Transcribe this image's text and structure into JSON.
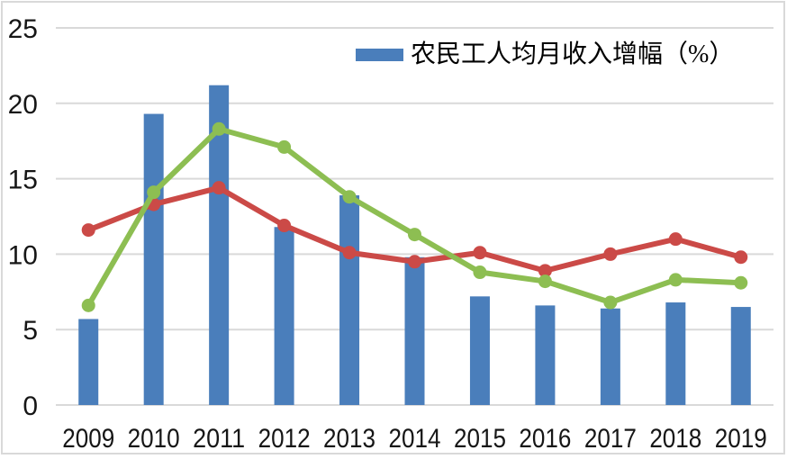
{
  "chart_data": {
    "type": "combo-bar-line",
    "title": "",
    "xlabel": "",
    "ylabel": "",
    "categories": [
      "2009",
      "2010",
      "2011",
      "2012",
      "2013",
      "2014",
      "2015",
      "2016",
      "2017",
      "2018",
      "2019"
    ],
    "series": [
      {
        "id": "migrant-worker-monthly-income-growth",
        "kind": "bar",
        "legend_label": "农民工人均月收入增幅（%）",
        "color": "#4A7EBB",
        "values": [
          5.7,
          19.3,
          21.2,
          11.8,
          13.9,
          9.8,
          7.2,
          6.6,
          6.4,
          6.8,
          6.5
        ]
      },
      {
        "id": "red-line",
        "kind": "line",
        "legend_label": null,
        "color": "#CB4A47",
        "values": [
          11.6,
          13.3,
          14.4,
          11.9,
          10.1,
          9.5,
          10.1,
          8.9,
          10.0,
          11.0,
          9.8
        ]
      },
      {
        "id": "green-line",
        "kind": "line",
        "legend_label": null,
        "color": "#8DBE52",
        "values": [
          6.6,
          14.1,
          18.3,
          17.1,
          13.8,
          11.3,
          8.8,
          8.2,
          6.8,
          8.3,
          8.1
        ]
      }
    ],
    "ylim": [
      0,
      25
    ],
    "yticks": [
      0,
      5,
      10,
      15,
      20,
      25
    ],
    "grid": "horizontal",
    "legend": {
      "label": "农民工人均月收入增幅（%）",
      "position": "top-center-inside",
      "swatch_color": "#4A7EBB"
    },
    "style": {
      "grid_color": "#D9D9D9",
      "border_color": "#D9D9D9",
      "background": "#FFFFFF",
      "axis_text_color": "#161616"
    }
  }
}
